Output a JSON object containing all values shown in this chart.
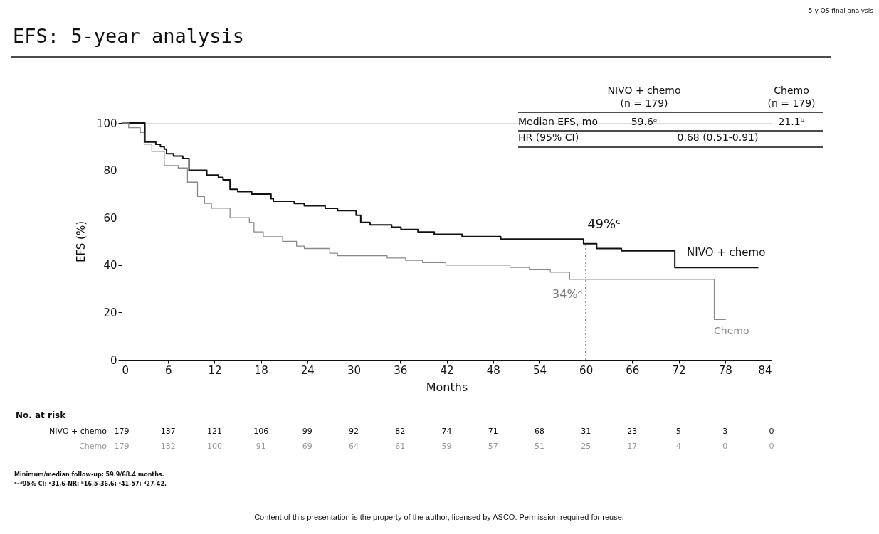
{
  "chart_data": {
    "type": "step",
    "title": "EFS: 5-year analysis",
    "xlabel": "Months",
    "ylabel": "EFS (%)",
    "xlim": [
      0,
      84
    ],
    "xticks": [
      0,
      6,
      12,
      18,
      24,
      30,
      36,
      42,
      48,
      54,
      60,
      66,
      72,
      78,
      84
    ],
    "ylim": [
      0,
      100
    ],
    "yticks": [
      0,
      20,
      40,
      60,
      80,
      100
    ],
    "grid": false,
    "marker": "none",
    "series": [
      {
        "name": "NIVO + chemo",
        "color": "#111111",
        "x": [
          0,
          2.3,
          3.0,
          4.4,
          5.0,
          5.5,
          5.8,
          6.7,
          7.9,
          8.7,
          11.0,
          12.5,
          13.1,
          14.0,
          15.0,
          16.8,
          19.3,
          19.6,
          22.3,
          23.6,
          26.3,
          27.9,
          30.3,
          30.9,
          32.1,
          34.9,
          36.1,
          38.3,
          40.4,
          44.0,
          49.0,
          59.7,
          61.4,
          64.6,
          71.5,
          82.3
        ],
        "values": [
          100,
          100,
          92,
          91,
          90,
          89,
          87,
          86,
          85,
          80,
          78,
          77,
          76,
          72,
          71,
          70,
          68,
          67,
          66,
          65,
          64,
          63,
          61,
          58,
          57,
          56,
          55,
          54,
          53,
          52,
          51,
          49,
          47,
          46,
          39,
          39
        ]
      },
      {
        "name": "Chemo",
        "color": "#8a8a8a",
        "x": [
          0,
          0.9,
          2.4,
          2.9,
          3.9,
          5.5,
          7.3,
          8.5,
          9.8,
          10.7,
          11.6,
          14.0,
          16.5,
          17.1,
          18.3,
          20.8,
          22.6,
          23.6,
          26.9,
          27.9,
          34.3,
          36.7,
          38.9,
          41.9,
          50.2,
          52.7,
          55.4,
          57.9,
          76.6,
          78.1
        ],
        "values": [
          100,
          98,
          96,
          91,
          88,
          82,
          81,
          75,
          69,
          66,
          64,
          60,
          58,
          54,
          52,
          50,
          48,
          47,
          45,
          44,
          43,
          42,
          41,
          40,
          39,
          38,
          37,
          34,
          17,
          17
        ]
      }
    ],
    "ref_lines": [
      {
        "axis": "x",
        "value": 60,
        "line_style": "dotted",
        "color": "#333333"
      }
    ],
    "annotations": [
      "5-y OS final analysis",
      "(n = 179)",
      "(n = 179)",
      "Median EFS, mo",
      "59.6ᵃ",
      "21.1ᵇ",
      "HR (95% CI)",
      "0.68 (0.51-0.91)",
      {
        "text": "49%ᶜ",
        "x": 60,
        "y": 49
      },
      {
        "text": "34%ᵈ",
        "x": 60,
        "y": 34
      },
      "No. at risk",
      "179",
      "137",
      "121",
      "106",
      "99",
      "92",
      "82",
      "74",
      "71",
      "68",
      "31",
      "23",
      "5",
      "3",
      "0",
      "179",
      "132",
      "100",
      "91",
      "69",
      "64",
      "61",
      "59",
      "57",
      "51",
      "25",
      "17",
      "4",
      "0",
      "0",
      "Minimum/median follow-up: 59.9/68.4 months.",
      "ᵃ⁻ᵈ95% CI: ᵃ31.6-NR; ᵇ16.5-36.6; ᶜ41-57; ᵈ27-42.",
      "Content of this presentation is the property of the author, licensed by ASCO. Permission required for reuse."
    ]
  }
}
